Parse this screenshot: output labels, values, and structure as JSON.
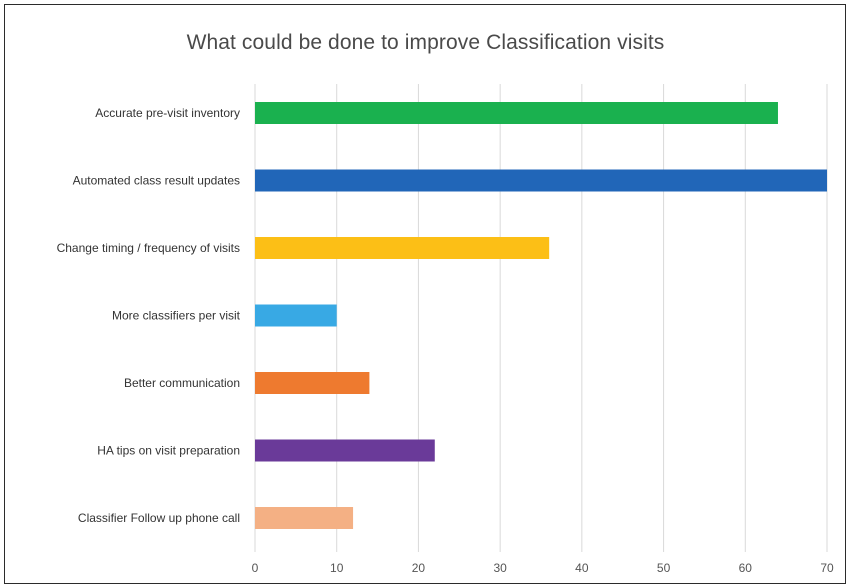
{
  "chart_data": {
    "type": "bar",
    "orientation": "horizontal",
    "title": "What could be done to improve Classification visits",
    "xlabel": "",
    "ylabel": "",
    "xlim": [
      0,
      70
    ],
    "ticks": [
      "0",
      "10",
      "20",
      "30",
      "40",
      "50",
      "60",
      "70"
    ],
    "grid": true,
    "legend": "none",
    "categories": [
      "Accurate pre-visit inventory",
      "Automated class result updates",
      "Change timing / frequency of visits",
      "More classifiers per visit",
      "Better communication",
      "HA tips on visit preparation",
      "Classifier Follow up phone call"
    ],
    "values": [
      64,
      70,
      36,
      10,
      14,
      22,
      12
    ],
    "colors": [
      "#1ab14f",
      "#2166b8",
      "#fcbf16",
      "#38a9e4",
      "#ee7a2f",
      "#6a3a99",
      "#f4b084"
    ]
  }
}
